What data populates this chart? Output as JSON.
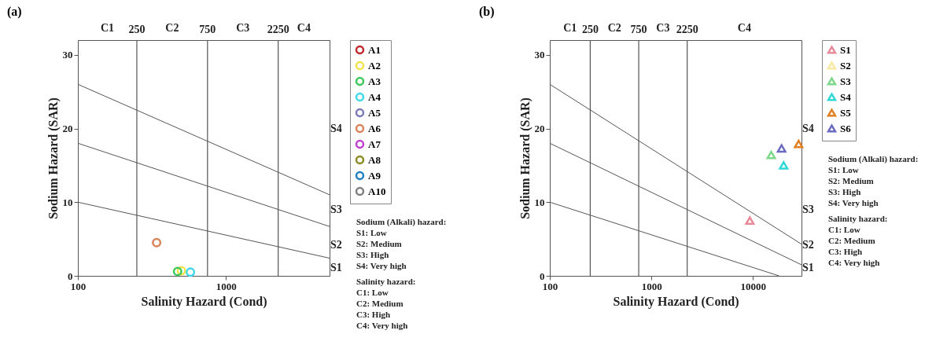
{
  "chart_data": [
    {
      "type": "scatter",
      "title": "(a)",
      "xlabel": "Salinity Hazard (Cond)",
      "ylabel": "Sodium Hazard (SAR)",
      "log": "x",
      "xlim": [
        100,
        5000
      ],
      "xticks": [
        100,
        1000
      ],
      "ylim": [
        0,
        32
      ],
      "yticks": [
        0,
        10,
        20,
        30
      ],
      "grid": false,
      "legend": "right",
      "marker": "circle",
      "series": [
        {
          "name": "A1",
          "color": "#c0282d",
          "x": [
            null
          ],
          "values": [
            null
          ]
        },
        {
          "name": "A2",
          "color": "#f2e34a",
          "x": [
            500
          ],
          "values": [
            0.7
          ]
        },
        {
          "name": "A3",
          "color": "#3cc85a",
          "x": [
            471
          ],
          "values": [
            0.6
          ]
        },
        {
          "name": "A4",
          "color": "#40d8e8",
          "x": [
            575
          ],
          "values": [
            0.5
          ]
        },
        {
          "name": "A5",
          "color": "#7b7bb8",
          "x": [
            null
          ],
          "values": [
            null
          ]
        },
        {
          "name": "A6",
          "color": "#d9835a",
          "x": [
            340
          ],
          "values": [
            4.5
          ]
        },
        {
          "name": "A7",
          "color": "#c040d0",
          "x": [
            null
          ],
          "values": [
            null
          ]
        },
        {
          "name": "A8",
          "color": "#8a8a20",
          "x": [
            null
          ],
          "values": [
            null
          ]
        },
        {
          "name": "A9",
          "color": "#1f7fc0",
          "x": [
            null
          ],
          "values": [
            null
          ]
        },
        {
          "name": "A10",
          "color": "#808080",
          "x": [
            null
          ],
          "values": [
            null
          ]
        },
        {
          "type": "line",
          "marker": "none",
          "color": "#555555",
          "x": [
            100,
            5000
          ],
          "values": [
            26,
            11
          ]
        },
        {
          "type": "line",
          "marker": "none",
          "color": "#555555",
          "x": [
            100,
            5000
          ],
          "values": [
            18,
            6.7
          ]
        },
        {
          "type": "line",
          "marker": "none",
          "color": "#555555",
          "x": [
            100,
            5000
          ],
          "values": [
            10,
            2.4
          ]
        }
      ],
      "ref_lines": [
        {
          "axis": "x",
          "value": 250,
          "label": "250"
        },
        {
          "axis": "x",
          "value": 750,
          "label": "750"
        },
        {
          "axis": "x",
          "value": 2250,
          "label": "2250"
        }
      ],
      "annotations": [
        "C1",
        "C2",
        "C3",
        "C4",
        "S4",
        "S3",
        "S2",
        "S1",
        "Sodium (Alkali) hazard:",
        "S1: Low",
        "S2: Medium",
        "S3: High",
        "S4: Very high",
        "Salinity hazard:",
        "C1: Low",
        "C2: Medium",
        "C3: High",
        "C4: Very high"
      ]
    },
    {
      "type": "scatter",
      "title": "(b)",
      "xlabel": "Salinity Hazard (Cond)",
      "ylabel": "Sodium Hazard (SAR)",
      "log": "x",
      "xlim": [
        100,
        30000
      ],
      "xticks": [
        100,
        1000,
        10000
      ],
      "ylim": [
        0,
        32
      ],
      "yticks": [
        0,
        10,
        20,
        30
      ],
      "grid": false,
      "legend": "right",
      "marker": "triangle",
      "series": [
        {
          "name": "S1",
          "color": "#e88a9a",
          "x": [
            9300
          ],
          "values": [
            7.5
          ]
        },
        {
          "name": "S2",
          "color": "#f7e9a0",
          "x": [
            null
          ],
          "values": [
            null
          ]
        },
        {
          "name": "S3",
          "color": "#7ed88a",
          "x": [
            15100
          ],
          "values": [
            16.4
          ]
        },
        {
          "name": "S4",
          "color": "#30d8d8",
          "x": [
            20000
          ],
          "values": [
            15.0
          ]
        },
        {
          "name": "S5",
          "color": "#e08020",
          "x": [
            28100
          ],
          "values": [
            17.9
          ]
        },
        {
          "name": "S6",
          "color": "#6a6ac0",
          "x": [
            19100
          ],
          "values": [
            17.3
          ]
        },
        {
          "type": "line",
          "marker": "none",
          "color": "#555555",
          "x": [
            100,
            30000
          ],
          "values": [
            26,
            4.3
          ]
        },
        {
          "type": "line",
          "marker": "none",
          "color": "#555555",
          "x": [
            100,
            30000
          ],
          "values": [
            18,
            1.5
          ]
        },
        {
          "type": "line",
          "marker": "none",
          "color": "#555555",
          "x": [
            100,
            18000
          ],
          "values": [
            10,
            0
          ]
        }
      ],
      "ref_lines": [
        {
          "axis": "x",
          "value": 250,
          "label": "250"
        },
        {
          "axis": "x",
          "value": 750,
          "label": "750"
        },
        {
          "axis": "x",
          "value": 2250,
          "label": "2250"
        }
      ],
      "annotations": [
        "C1",
        "C2",
        "C3",
        "C4",
        "S4",
        "S3",
        "S2",
        "S1",
        "Sodium (Alkali) hazard:",
        "S1: Low",
        "S2: Medium",
        "S3: High",
        "S4: Very high",
        "Salinity hazard:",
        "C1: Low",
        "C2: Medium",
        "C3: High",
        "C4: Very high"
      ]
    }
  ]
}
